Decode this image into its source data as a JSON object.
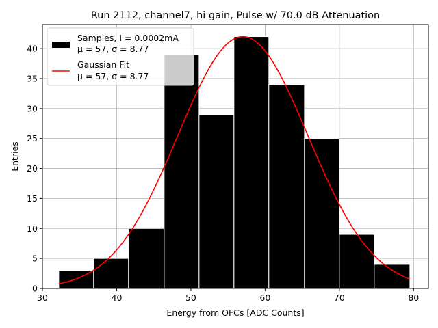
{
  "chart_data": {
    "type": "bar",
    "title": "Run 2112, channel7, hi gain, Pulse w/ 70.0 dB Attenuation",
    "xlabel": "Energy from OFCs [ADC Counts]",
    "ylabel": "Entries",
    "xlim": [
      30,
      82
    ],
    "ylim": [
      0,
      44
    ],
    "xticks": [
      30,
      40,
      50,
      60,
      70,
      80
    ],
    "yticks": [
      0,
      5,
      10,
      15,
      20,
      25,
      30,
      35,
      40
    ],
    "grid": true,
    "legend_position": "top-left",
    "bins": [
      {
        "x0": 32.2,
        "x1": 36.9,
        "count": 3
      },
      {
        "x0": 36.9,
        "x1": 41.6,
        "count": 5
      },
      {
        "x0": 41.6,
        "x1": 46.4,
        "count": 10
      },
      {
        "x0": 46.4,
        "x1": 51.1,
        "count": 39
      },
      {
        "x0": 51.1,
        "x1": 55.8,
        "count": 29
      },
      {
        "x0": 55.8,
        "x1": 60.5,
        "count": 42
      },
      {
        "x0": 60.5,
        "x1": 65.3,
        "count": 34
      },
      {
        "x0": 65.3,
        "x1": 70.0,
        "count": 25
      },
      {
        "x0": 70.0,
        "x1": 74.7,
        "count": 9
      },
      {
        "x0": 74.7,
        "x1": 79.5,
        "count": 4
      }
    ],
    "series": [
      {
        "name": "Samples, I = 0.0002mA",
        "name_line2": "μ = 57, σ = 8.77",
        "kind": "histogram",
        "color": "#000000",
        "edgecolor": "#ffffff"
      },
      {
        "name": "Gaussian Fit",
        "name_line2": "μ = 57, σ = 8.77",
        "kind": "line",
        "color": "#ff0000",
        "mu": 57,
        "sigma": 8.77,
        "amplitude": 42,
        "x_range": [
          32.2,
          79.5
        ]
      }
    ]
  }
}
